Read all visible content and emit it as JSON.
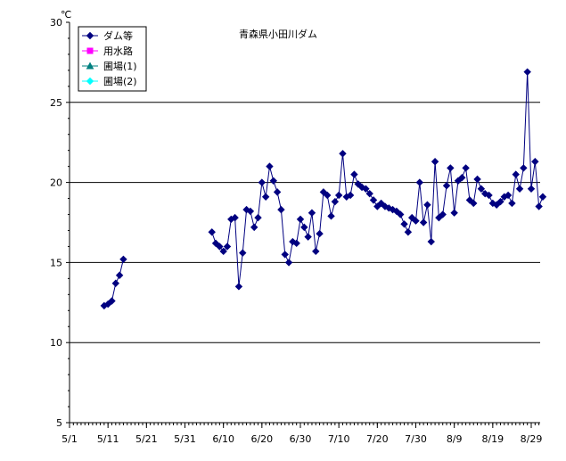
{
  "chart_data": {
    "type": "line",
    "title": "青森県小田川ダム",
    "unit_label": "℃",
    "ylim": [
      5,
      30
    ],
    "yticks": [
      5,
      10,
      15,
      20,
      25,
      30
    ],
    "grid_y": [
      10,
      15,
      20,
      25
    ],
    "x_day_range": [
      0,
      122
    ],
    "xticks": [
      {
        "day": 0,
        "label": "5/1"
      },
      {
        "day": 10,
        "label": "5/11"
      },
      {
        "day": 20,
        "label": "5/21"
      },
      {
        "day": 30,
        "label": "5/31"
      },
      {
        "day": 40,
        "label": "6/10"
      },
      {
        "day": 50,
        "label": "6/20"
      },
      {
        "day": 60,
        "label": "6/30"
      },
      {
        "day": 70,
        "label": "7/10"
      },
      {
        "day": 80,
        "label": "7/20"
      },
      {
        "day": 90,
        "label": "7/30"
      },
      {
        "day": 100,
        "label": "8/9"
      },
      {
        "day": 110,
        "label": "8/19"
      },
      {
        "day": 120,
        "label": "8/29"
      }
    ],
    "legend_position": "top-left",
    "series": [
      {
        "name": "ダム等",
        "color": "#000080",
        "marker": "diamond",
        "segments": [
          [
            [
              9,
              12.3
            ],
            [
              10,
              12.4
            ],
            [
              11,
              12.6
            ],
            [
              12,
              13.7
            ],
            [
              13,
              14.2
            ],
            [
              14,
              15.2
            ]
          ],
          [
            [
              37,
              16.9
            ],
            [
              38,
              16.2
            ],
            [
              39,
              16.0
            ],
            [
              40,
              15.7
            ],
            [
              41,
              16.0
            ],
            [
              42,
              17.7
            ],
            [
              43,
              17.8
            ],
            [
              44,
              13.5
            ],
            [
              45,
              15.6
            ],
            [
              46,
              18.3
            ],
            [
              47,
              18.2
            ],
            [
              48,
              17.2
            ],
            [
              49,
              17.8
            ],
            [
              50,
              20.0
            ],
            [
              51,
              19.1
            ],
            [
              52,
              21.0
            ],
            [
              53,
              20.1
            ],
            [
              54,
              19.4
            ],
            [
              55,
              18.3
            ],
            [
              56,
              15.5
            ],
            [
              57,
              15.0
            ],
            [
              58,
              16.3
            ],
            [
              59,
              16.2
            ],
            [
              60,
              17.7
            ],
            [
              61,
              17.2
            ],
            [
              62,
              16.6
            ],
            [
              63,
              18.1
            ],
            [
              64,
              15.7
            ],
            [
              65,
              16.8
            ],
            [
              66,
              19.4
            ],
            [
              67,
              19.2
            ],
            [
              68,
              17.9
            ],
            [
              69,
              18.8
            ],
            [
              70,
              19.2
            ],
            [
              71,
              21.8
            ],
            [
              72,
              19.1
            ],
            [
              73,
              19.2
            ],
            [
              74,
              20.5
            ],
            [
              75,
              19.9
            ],
            [
              76,
              19.7
            ],
            [
              77,
              19.6
            ],
            [
              78,
              19.3
            ],
            [
              79,
              18.9
            ],
            [
              80,
              18.5
            ],
            [
              81,
              18.7
            ],
            [
              82,
              18.5
            ],
            [
              83,
              18.4
            ],
            [
              84,
              18.3
            ],
            [
              85,
              18.2
            ],
            [
              86,
              18.0
            ],
            [
              87,
              17.4
            ],
            [
              88,
              16.9
            ],
            [
              89,
              17.8
            ],
            [
              90,
              17.6
            ],
            [
              91,
              20.0
            ],
            [
              92,
              17.5
            ],
            [
              93,
              18.6
            ],
            [
              94,
              16.3
            ],
            [
              95,
              21.3
            ],
            [
              96,
              17.8
            ],
            [
              97,
              18.0
            ],
            [
              98,
              19.8
            ],
            [
              99,
              20.9
            ],
            [
              100,
              18.1
            ],
            [
              101,
              20.1
            ],
            [
              102,
              20.3
            ],
            [
              103,
              20.9
            ],
            [
              104,
              18.9
            ],
            [
              105,
              18.7
            ],
            [
              106,
              20.2
            ],
            [
              107,
              19.6
            ],
            [
              108,
              19.3
            ],
            [
              109,
              19.2
            ],
            [
              110,
              18.7
            ],
            [
              111,
              18.6
            ],
            [
              112,
              18.8
            ],
            [
              113,
              19.1
            ],
            [
              114,
              19.2
            ],
            [
              115,
              18.7
            ],
            [
              116,
              20.5
            ],
            [
              117,
              19.6
            ],
            [
              118,
              20.9
            ],
            [
              119,
              26.9
            ],
            [
              120,
              19.6
            ],
            [
              121,
              21.3
            ],
            [
              122,
              18.5
            ],
            [
              123,
              19.1
            ]
          ]
        ]
      },
      {
        "name": "用水路",
        "color": "#ff00ff",
        "marker": "square",
        "segments": []
      },
      {
        "name": "圃場(1)",
        "color": "#008080",
        "marker": "triangle",
        "segments": []
      },
      {
        "name": "圃場(2)",
        "color": "#00ffff",
        "marker": "diamond",
        "segments": []
      }
    ]
  }
}
